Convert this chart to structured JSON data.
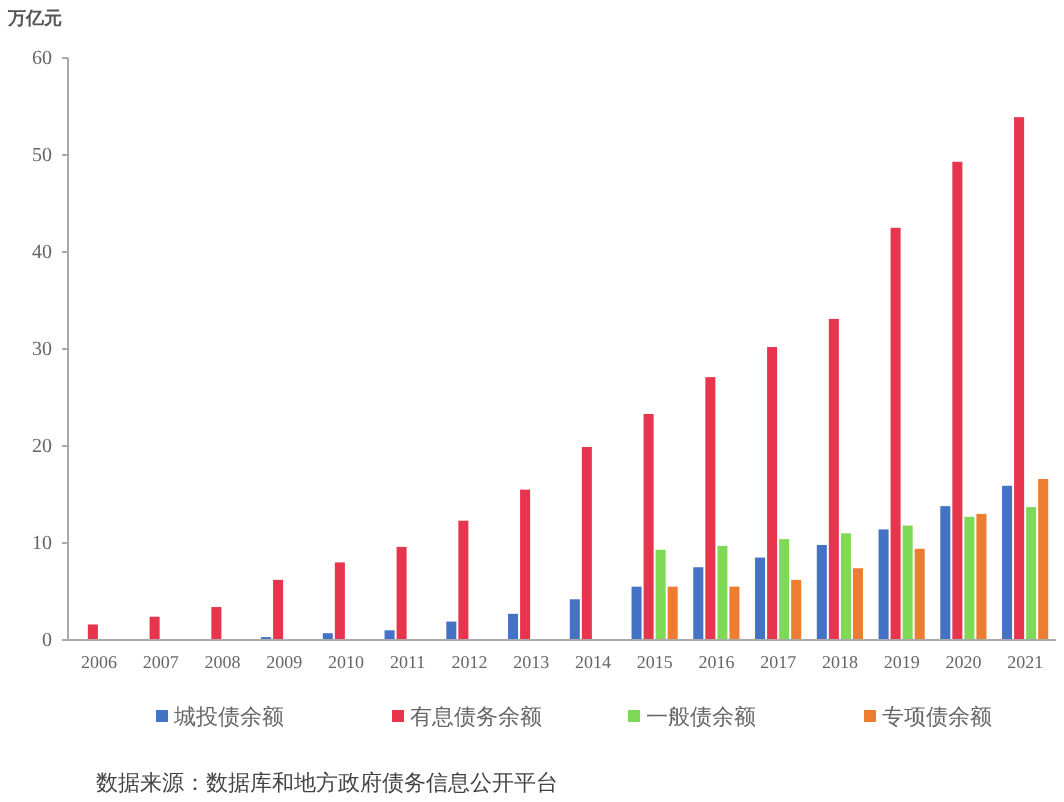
{
  "chart_data": {
    "type": "bar",
    "ylabel": "万亿元",
    "categories": [
      "2006",
      "2007",
      "2008",
      "2009",
      "2010",
      "2011",
      "2012",
      "2013",
      "2014",
      "2015",
      "2016",
      "2017",
      "2018",
      "2019",
      "2020",
      "2021"
    ],
    "series": [
      {
        "name": "城投债余额",
        "color": "#4472c4",
        "values": [
          null,
          null,
          null,
          0.3,
          0.7,
          1.0,
          1.9,
          2.7,
          4.2,
          5.5,
          7.5,
          8.5,
          9.8,
          11.4,
          13.8,
          15.9
        ]
      },
      {
        "name": "有息债务余额",
        "color": "#e8354e",
        "values": [
          1.6,
          2.4,
          3.4,
          6.2,
          8.0,
          9.6,
          12.3,
          15.5,
          19.9,
          23.3,
          27.1,
          30.2,
          33.1,
          42.5,
          49.3,
          53.9
        ]
      },
      {
        "name": "一般债余额",
        "color": "#7ed957",
        "values": [
          null,
          null,
          null,
          null,
          null,
          null,
          null,
          null,
          null,
          9.3,
          9.7,
          10.4,
          11.0,
          11.8,
          12.7,
          13.7
        ]
      },
      {
        "name": "专项债余额",
        "color": "#ed7d31",
        "values": [
          null,
          null,
          null,
          null,
          null,
          null,
          null,
          null,
          null,
          5.5,
          5.5,
          6.2,
          7.4,
          9.4,
          13.0,
          16.6
        ]
      }
    ],
    "ylim": [
      0,
      60
    ],
    "yticks": [
      0,
      10,
      20,
      30,
      40,
      50,
      60
    ],
    "grid": false,
    "legend": "bottom",
    "annotations": [
      "数据来源：数据库和地方政府债务信息公开平台"
    ]
  }
}
